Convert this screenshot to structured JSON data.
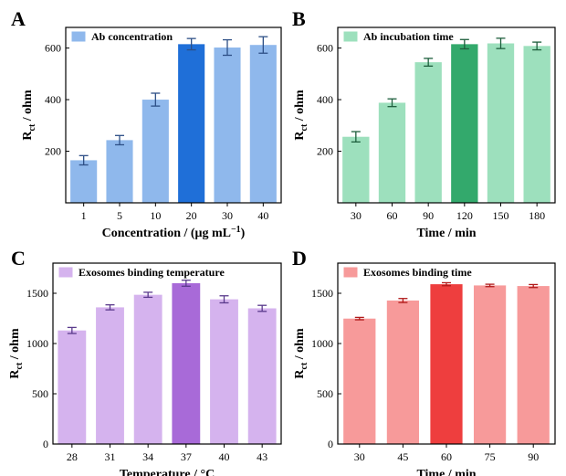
{
  "panels": [
    {
      "letter": "A",
      "legend": "Ab concentration",
      "colors": {
        "base": "#8fb8ec",
        "highlight": "#1f6fd8",
        "error": "#2d4f86"
      },
      "chart_data": {
        "type": "bar",
        "categories": [
          "1",
          "5",
          "10",
          "20",
          "30",
          "40"
        ],
        "values": [
          165,
          243,
          400,
          615,
          602,
          612
        ],
        "errors": [
          18,
          18,
          25,
          22,
          30,
          32
        ],
        "highlight_index": 3,
        "ylim": [
          0,
          680
        ],
        "yticks": [
          200,
          400,
          600
        ],
        "xlabel": "Concentration / (μg mL⁻¹)",
        "ylabel": "Rct / ohm",
        "legend_position": "top-left"
      }
    },
    {
      "letter": "B",
      "legend": "Ab incubation time",
      "colors": {
        "base": "#9de0bd",
        "highlight": "#33a96c",
        "error": "#1d5e3c"
      },
      "chart_data": {
        "type": "bar",
        "categories": [
          "30",
          "60",
          "90",
          "120",
          "150",
          "180"
        ],
        "values": [
          256,
          388,
          545,
          615,
          618,
          608
        ],
        "errors": [
          20,
          15,
          15,
          18,
          20,
          15
        ],
        "highlight_index": 3,
        "ylim": [
          0,
          680
        ],
        "yticks": [
          200,
          400,
          600
        ],
        "xlabel": "Time / min",
        "ylabel": "Rct / ohm",
        "legend_position": "top-left"
      }
    },
    {
      "letter": "C",
      "legend": "Exosomes binding temperature",
      "colors": {
        "base": "#d5b3ee",
        "highlight": "#a86ad8",
        "error": "#5a3a8c"
      },
      "chart_data": {
        "type": "bar",
        "categories": [
          "28",
          "31",
          "34",
          "37",
          "40",
          "43"
        ],
        "values": [
          1130,
          1360,
          1485,
          1600,
          1440,
          1350
        ],
        "errors": [
          30,
          25,
          25,
          30,
          35,
          30
        ],
        "highlight_index": 3,
        "ylim": [
          0,
          1800
        ],
        "yticks": [
          0,
          500,
          1000,
          1500
        ],
        "xlabel": "Temperature / °C",
        "ylabel": "Rct / ohm",
        "legend_position": "top-left"
      }
    },
    {
      "letter": "D",
      "legend": "Exosomes binding time",
      "colors": {
        "base": "#f79a9a",
        "highlight": "#ee3e3e",
        "error": "#b11a1a"
      },
      "chart_data": {
        "type": "bar",
        "categories": [
          "30",
          "45",
          "60",
          "75",
          "90"
        ],
        "values": [
          1248,
          1428,
          1590,
          1578,
          1572
        ],
        "errors": [
          12,
          20,
          15,
          12,
          15
        ],
        "highlight_index": 2,
        "ylim": [
          0,
          1800
        ],
        "yticks": [
          0,
          500,
          1000,
          1500
        ],
        "xlabel": "Time / min",
        "ylabel": "Rct / ohm",
        "legend_position": "top-left"
      }
    }
  ]
}
